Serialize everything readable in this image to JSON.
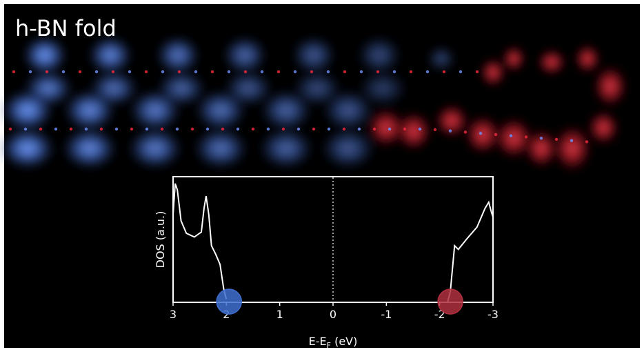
{
  "title": "h-BN fold",
  "colors": {
    "background": "#000000",
    "frame": "#ffffff",
    "blue_density": "#4f7ce0",
    "red_density": "#e8283c",
    "blue_marker": "#3f6fd0",
    "red_marker": "#b03040",
    "dos_curve": "#ffffff"
  },
  "inset": {
    "ylabel": "DOS (a.u.)",
    "xlabel_main": "E-E",
    "xlabel_sub": "F",
    "xlabel_unit": " (eV)",
    "xlim": [
      3,
      -3
    ],
    "xticks": [
      {
        "value": 3,
        "label": "3"
      },
      {
        "value": 2,
        "label": "2"
      },
      {
        "value": 1,
        "label": "1"
      },
      {
        "value": 0,
        "label": "0"
      },
      {
        "value": -1,
        "label": "-1"
      },
      {
        "value": -2,
        "label": "-2"
      },
      {
        "value": -3,
        "label": "-3"
      }
    ],
    "fermi_line": 0,
    "markers": [
      {
        "name": "valence-edge",
        "energy": 1.95,
        "color": "blue"
      },
      {
        "name": "conduction-edge",
        "energy": -2.2,
        "color": "red"
      }
    ],
    "dos_segments": [
      [
        [
          3.0,
          0.7
        ],
        [
          2.96,
          0.95
        ],
        [
          2.92,
          0.9
        ],
        [
          2.85,
          0.65
        ],
        [
          2.75,
          0.55
        ],
        [
          2.6,
          0.52
        ],
        [
          2.47,
          0.56
        ],
        [
          2.42,
          0.75
        ],
        [
          2.38,
          0.85
        ],
        [
          2.33,
          0.7
        ],
        [
          2.28,
          0.45
        ],
        [
          2.2,
          0.38
        ],
        [
          2.12,
          0.3
        ],
        [
          2.05,
          0.1
        ],
        [
          2.0,
          0.02
        ]
      ],
      [
        [
          -2.15,
          0.0
        ],
        [
          -2.2,
          0.08
        ],
        [
          -2.28,
          0.45
        ],
        [
          -2.35,
          0.42
        ],
        [
          -2.5,
          0.5
        ],
        [
          -2.7,
          0.6
        ],
        [
          -2.85,
          0.75
        ],
        [
          -2.92,
          0.8
        ],
        [
          -2.97,
          0.72
        ],
        [
          -3.0,
          0.68
        ]
      ]
    ]
  }
}
